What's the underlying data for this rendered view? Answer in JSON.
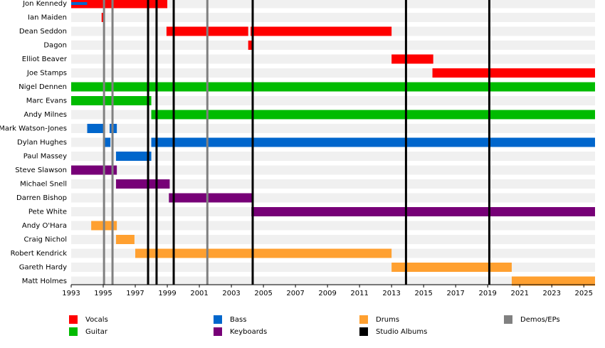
{
  "chart_data": {
    "type": "timeline",
    "xlim": [
      1993,
      2025.7
    ],
    "xticks": [
      1993,
      1995,
      1997,
      1999,
      2001,
      2003,
      2005,
      2007,
      2009,
      2011,
      2013,
      2015,
      2017,
      2019,
      2021,
      2023,
      2025
    ],
    "roles": [
      {
        "name": "Vocals",
        "color": "#ff0000"
      },
      {
        "name": "Guitar",
        "color": "#00bb00"
      },
      {
        "name": "Bass",
        "color": "#0066cc"
      },
      {
        "name": "Keyboards",
        "color": "#770077"
      },
      {
        "name": "Drums",
        "color": "#ffa030"
      }
    ],
    "events": [
      {
        "name": "Studio Albums",
        "color": "#000000",
        "x": [
          1997.8,
          1998.33,
          1999.4,
          2004.33,
          2013.9,
          2019.1
        ]
      },
      {
        "name": "Demos/EPs",
        "color": "#808080",
        "x": [
          1995.05,
          1995.58,
          2001.5
        ]
      }
    ],
    "members": [
      {
        "name": "Jon Kennedy",
        "periods": [
          {
            "role": "Vocals",
            "start": 1993,
            "end": 1999.0
          },
          {
            "role": "Bass",
            "start": 1993,
            "end": 1994.0
          }
        ]
      },
      {
        "name": "Ian Maiden",
        "periods": [
          {
            "role": "Vocals",
            "start": 1994.9,
            "end": 1995.05
          }
        ]
      },
      {
        "name": "Dean Seddon",
        "periods": [
          {
            "role": "Vocals",
            "start": 1998.95,
            "end": 2004.05
          },
          {
            "role": "Vocals",
            "start": 2004.2,
            "end": 2013.0
          }
        ]
      },
      {
        "name": "Dagon",
        "periods": [
          {
            "role": "Vocals",
            "start": 2004.05,
            "end": 2004.3
          }
        ]
      },
      {
        "name": "Elliot Beaver",
        "periods": [
          {
            "role": "Vocals",
            "start": 2013.0,
            "end": 2015.6
          }
        ]
      },
      {
        "name": "Joe Stamps",
        "periods": [
          {
            "role": "Vocals",
            "start": 2015.55,
            "end": 2025.7
          }
        ]
      },
      {
        "name": "Nigel Dennen",
        "periods": [
          {
            "role": "Guitar",
            "start": 1993,
            "end": 2025.7
          }
        ]
      },
      {
        "name": "Marc Evans",
        "periods": [
          {
            "role": "Guitar",
            "start": 1993,
            "end": 1998.0
          }
        ]
      },
      {
        "name": "Andy Milnes",
        "periods": [
          {
            "role": "Guitar",
            "start": 1998.0,
            "end": 2025.7
          }
        ]
      },
      {
        "name": "Mark Watson-Jones",
        "periods": [
          {
            "role": "Bass",
            "start": 1994.0,
            "end": 1995.05
          },
          {
            "role": "Bass",
            "start": 1995.4,
            "end": 1995.85
          }
        ]
      },
      {
        "name": "Dylan Hughes",
        "periods": [
          {
            "role": "Bass",
            "start": 1995.05,
            "end": 1995.45
          },
          {
            "role": "Bass",
            "start": 1998.0,
            "end": 2025.7
          }
        ]
      },
      {
        "name": "Paul Massey",
        "periods": [
          {
            "role": "Bass",
            "start": 1995.8,
            "end": 1998.0
          }
        ]
      },
      {
        "name": "Steve Slawson",
        "periods": [
          {
            "role": "Keyboards",
            "start": 1993,
            "end": 1995.85
          }
        ]
      },
      {
        "name": "Michael Snell",
        "periods": [
          {
            "role": "Keyboards",
            "start": 1995.8,
            "end": 1999.15
          }
        ]
      },
      {
        "name": "Darren Bishop",
        "periods": [
          {
            "role": "Keyboards",
            "start": 1999.1,
            "end": 2004.35
          }
        ]
      },
      {
        "name": "Pete White",
        "periods": [
          {
            "role": "Keyboards",
            "start": 2004.25,
            "end": 2025.7
          }
        ]
      },
      {
        "name": "Andy O'Hara",
        "periods": [
          {
            "role": "Drums",
            "start": 1994.25,
            "end": 1995.85
          }
        ]
      },
      {
        "name": "Craig Nichol",
        "periods": [
          {
            "role": "Drums",
            "start": 1995.8,
            "end": 1996.95
          }
        ]
      },
      {
        "name": "Robert Kendrick",
        "periods": [
          {
            "role": "Drums",
            "start": 1997.0,
            "end": 2013.0
          }
        ]
      },
      {
        "name": "Gareth Hardy",
        "periods": [
          {
            "role": "Drums",
            "start": 2013.0,
            "end": 2020.5
          }
        ]
      },
      {
        "name": "Matt Holmes",
        "periods": [
          {
            "role": "Drums",
            "start": 2020.5,
            "end": 2025.7
          }
        ]
      }
    ]
  }
}
